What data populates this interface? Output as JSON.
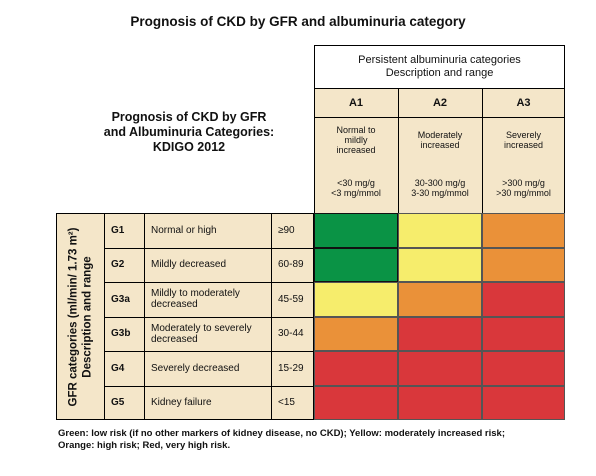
{
  "title": "Prognosis of CKD by GFR and albuminuria category",
  "subtitle": [
    "Prognosis of CKD by GFR",
    "and Albuminuria Categories:",
    "KDIGO 2012"
  ],
  "albuminuria_header": [
    "Persistent albuminuria categories",
    "Description and range"
  ],
  "albuminuria_categories": [
    {
      "code": "A1",
      "description": [
        "Normal to",
        "mildly",
        "increased"
      ],
      "range": [
        "<30 mg/g",
        "<3 mg/mmol"
      ]
    },
    {
      "code": "A2",
      "description": [
        "Moderately",
        "increased"
      ],
      "range": [
        "30-300 mg/g",
        "3-30 mg/mmol"
      ]
    },
    {
      "code": "A3",
      "description": [
        "Severely",
        "increased"
      ],
      "range": [
        ">300 mg/g",
        ">30 mg/mmol"
      ]
    }
  ],
  "gfr_header": [
    "GFR categories (ml/min/ 1.73 m²)",
    "Description and range"
  ],
  "gfr_categories": [
    {
      "code": "G1",
      "description": "Normal or high",
      "range": "≥90"
    },
    {
      "code": "G2",
      "description": "Mildly decreased",
      "range": "60-89"
    },
    {
      "code": "G3a",
      "description": "Mildly to moderately decreased",
      "range": "45-59"
    },
    {
      "code": "G3b",
      "description": "Moderately to severely decreased",
      "range": "30-44"
    },
    {
      "code": "G4",
      "description": "Severely decreased",
      "range": "15-29"
    },
    {
      "code": "G5",
      "description": "Kidney failure",
      "range": "<15"
    }
  ],
  "risk_colors": {
    "green": "#0a9345",
    "yellow": "#f6ed6c",
    "orange": "#ea9139",
    "red": "#d9373b"
  },
  "risk_grid": [
    [
      "green",
      "yellow",
      "orange"
    ],
    [
      "green",
      "yellow",
      "orange"
    ],
    [
      "yellow",
      "orange",
      "red"
    ],
    [
      "orange",
      "red",
      "red"
    ],
    [
      "red",
      "red",
      "red"
    ],
    [
      "red",
      "red",
      "red"
    ]
  ],
  "footnote": [
    "Green: low risk (if no other markers of kidney disease, no CKD); Yellow: moderately increased risk;",
    "Orange: high risk; Red, very high risk."
  ]
}
